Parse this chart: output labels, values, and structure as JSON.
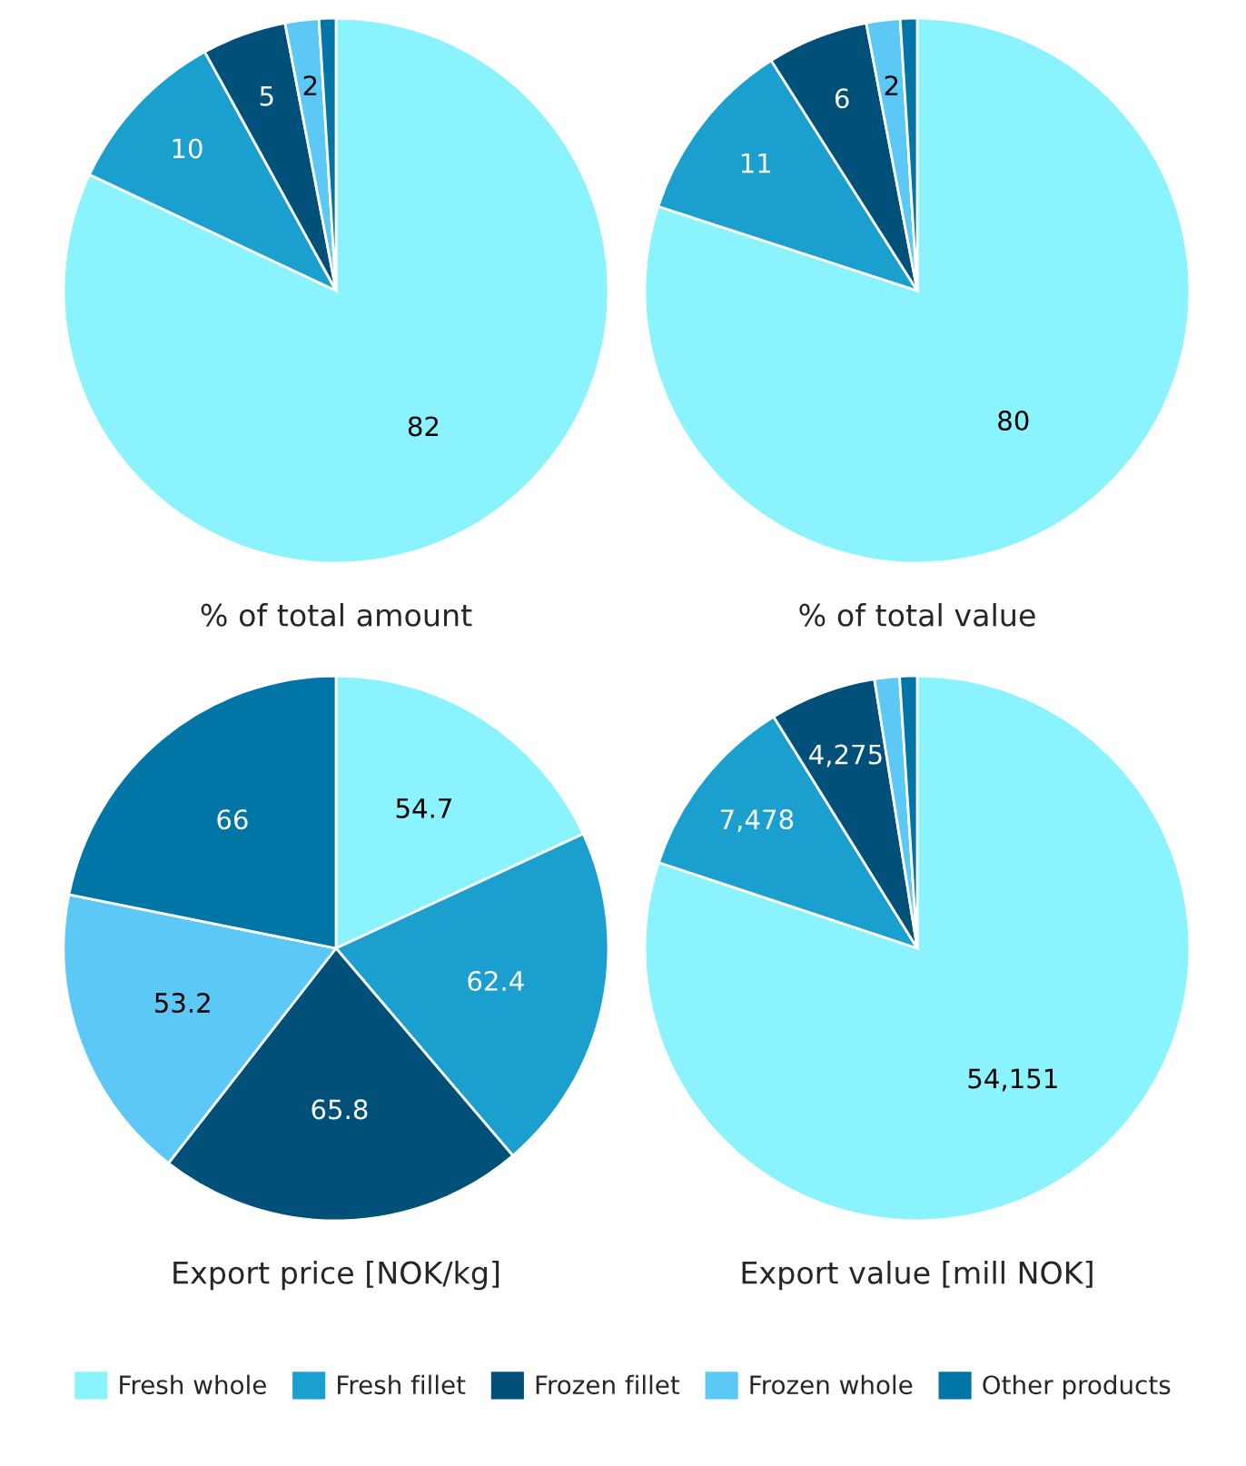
{
  "chart_data": [
    {
      "type": "pie",
      "title": "% of total amount",
      "categories": [
        "Fresh whole",
        "Fresh fillet",
        "Frozen fillet",
        "Frozen whole",
        "Other products"
      ],
      "values": [
        82,
        10,
        5,
        2,
        1
      ],
      "value_labels": [
        "82",
        "10",
        "5",
        "2",
        null
      ],
      "colors": [
        "#8af3fd",
        "#1a9fcf",
        "#00507a",
        "#5bc8f5",
        "#0075a6"
      ],
      "legend": "bottom"
    },
    {
      "type": "pie",
      "title": "% of total value",
      "categories": [
        null,
        null,
        null,
        null,
        null
      ],
      "values": [
        80,
        11,
        6,
        2,
        1
      ],
      "value_labels": [
        "80",
        "11",
        "6",
        "2",
        null
      ],
      "colors": [
        "#8af3fd",
        "#1a9fcf",
        "#00507a",
        "#5bc8f5",
        "#0075a6"
      ]
    },
    {
      "type": "pie",
      "title": "Export price [NOK/kg]",
      "categories": [
        null,
        null,
        null,
        null,
        null
      ],
      "values": [
        54.7,
        62.4,
        65.8,
        53.2,
        66
      ],
      "value_labels": [
        "54.7",
        "62.4",
        "65.8",
        "53.2",
        "66"
      ],
      "colors": [
        "#8af3fd",
        "#1a9fcf",
        "#00507a",
        "#5bc8f5",
        "#0075a6"
      ]
    },
    {
      "type": "pie",
      "title": "Export value [mill NOK]",
      "categories": [
        null,
        null,
        null,
        null,
        null
      ],
      "values": [
        54151,
        7478,
        4275,
        1000,
        700
      ],
      "value_labels": [
        "54,151",
        "7,478",
        "4,275",
        null,
        null
      ],
      "colors": [
        "#8af3fd",
        "#1a9fcf",
        "#00507a",
        "#5bc8f5",
        "#0075a6"
      ]
    }
  ]
}
